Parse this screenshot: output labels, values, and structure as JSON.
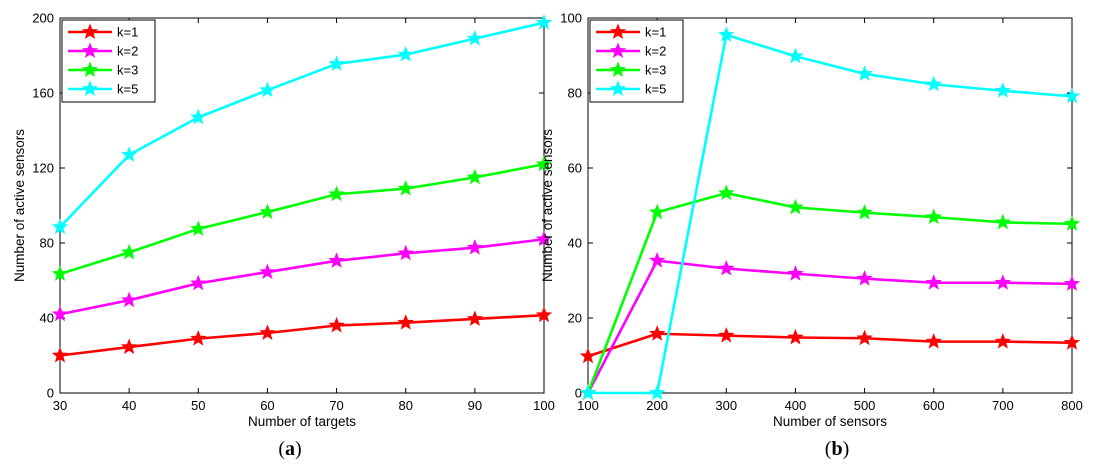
{
  "chart_data": [
    {
      "type": "line",
      "panel_label": "a",
      "xlabel": "Number of targets",
      "ylabel": "Number of active sensors",
      "xlim": [
        30,
        100
      ],
      "ylim": [
        0,
        200
      ],
      "x_ticks": [
        30,
        40,
        50,
        60,
        70,
        80,
        90,
        100
      ],
      "y_ticks": [
        0,
        40,
        80,
        120,
        160,
        200
      ],
      "grid": false,
      "legend_position": "top-left",
      "x": [
        30,
        40,
        50,
        60,
        70,
        80,
        90,
        100
      ],
      "series": [
        {
          "name": "k=1",
          "color": "#ff0000",
          "values": [
            20,
            24.5,
            29,
            32,
            36,
            37.5,
            39.5,
            41.5
          ]
        },
        {
          "name": "k=2",
          "color": "#ff00ff",
          "values": [
            42,
            49.5,
            58.5,
            64.5,
            70.5,
            74.5,
            77.5,
            82
          ]
        },
        {
          "name": "k=3",
          "color": "#00ff00",
          "values": [
            63.5,
            75,
            87.5,
            96.5,
            106,
            109,
            115,
            122
          ]
        },
        {
          "name": "k=5",
          "color": "#00ffff",
          "values": [
            88.5,
            127,
            147,
            161.5,
            175.5,
            180.5,
            189,
            197.5
          ]
        }
      ]
    },
    {
      "type": "line",
      "panel_label": "b",
      "xlabel": "Number of sensors",
      "ylabel": "Number of active sensors",
      "xlim": [
        100,
        800
      ],
      "ylim": [
        0,
        100
      ],
      "x_ticks": [
        100,
        200,
        300,
        400,
        500,
        600,
        700,
        800
      ],
      "y_ticks": [
        0,
        20,
        40,
        60,
        80,
        100
      ],
      "grid": false,
      "legend_position": "top-left",
      "x": [
        100,
        200,
        300,
        400,
        500,
        600,
        700,
        800
      ],
      "series": [
        {
          "name": "k=1",
          "color": "#ff0000",
          "values": [
            9.8,
            15.8,
            15.3,
            14.8,
            14.6,
            13.7,
            13.7,
            13.4
          ]
        },
        {
          "name": "k=2",
          "color": "#ff00ff",
          "values": [
            0,
            35.3,
            33.2,
            31.8,
            30.5,
            29.4,
            29.4,
            29.1
          ]
        },
        {
          "name": "k=3",
          "color": "#00ff00",
          "values": [
            0,
            48.2,
            53.3,
            49.5,
            48.1,
            46.9,
            45.5,
            45.1
          ]
        },
        {
          "name": "k=5",
          "color": "#00ffff",
          "values": [
            0,
            0,
            95.5,
            89.8,
            85.1,
            82.3,
            80.6,
            79.1
          ]
        }
      ]
    }
  ]
}
